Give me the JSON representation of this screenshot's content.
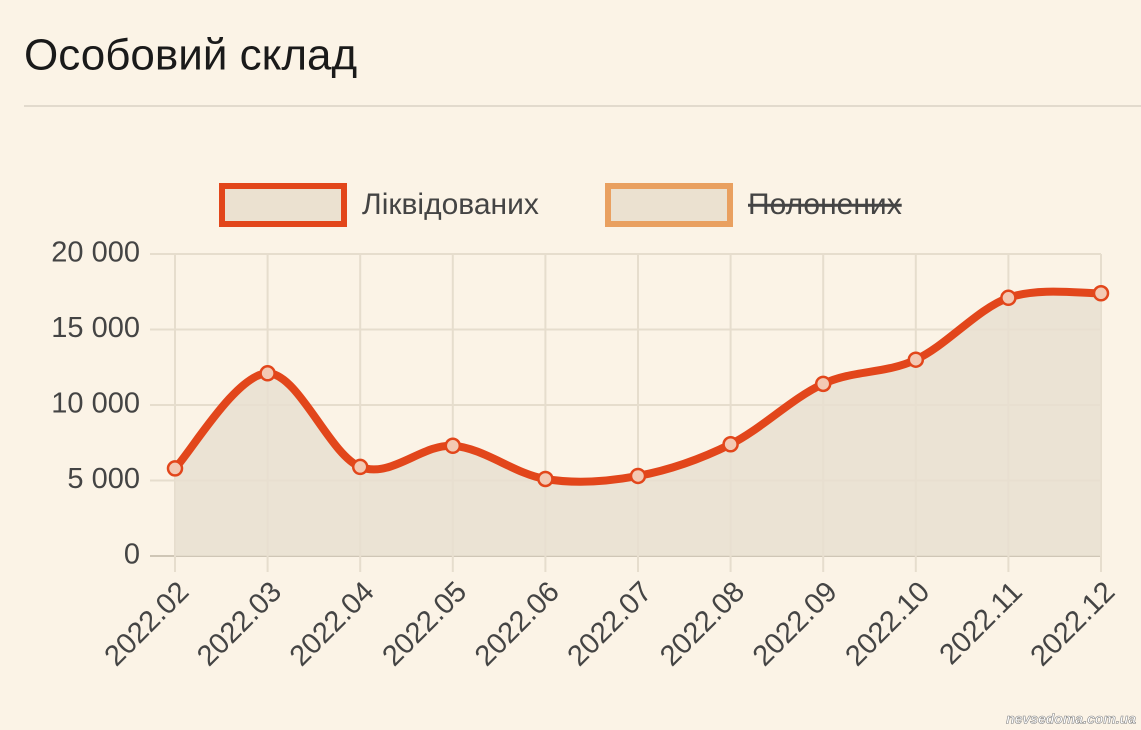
{
  "header": {
    "title": "Особовий склад"
  },
  "chart_data": {
    "type": "line",
    "categories": [
      "2022.02",
      "2022.03",
      "2022.04",
      "2022.05",
      "2022.06",
      "2022.07",
      "2022.08",
      "2022.09",
      "2022.10",
      "2022.11",
      "2022.12"
    ],
    "series": [
      {
        "name": "Ліквідованих",
        "color": "#e2461b",
        "fill": "#e8dfd0",
        "values": [
          5800,
          12100,
          5900,
          7300,
          5100,
          5300,
          7400,
          11400,
          13000,
          17100,
          17400
        ]
      },
      {
        "name": "Полонених",
        "color": "#e9a060",
        "hidden": true
      }
    ],
    "ylim": [
      0,
      20000
    ],
    "yticks": [
      0,
      {
        "value": 5000,
        "label": "5 000"
      },
      {
        "value": 10000,
        "label": "10 000"
      },
      {
        "value": 15000,
        "label": "15 000"
      },
      {
        "value": 20000,
        "label": "20 000"
      }
    ],
    "grid": true,
    "smooth": true,
    "legend": "top"
  },
  "watermark": "nevsedoma.com.ua"
}
